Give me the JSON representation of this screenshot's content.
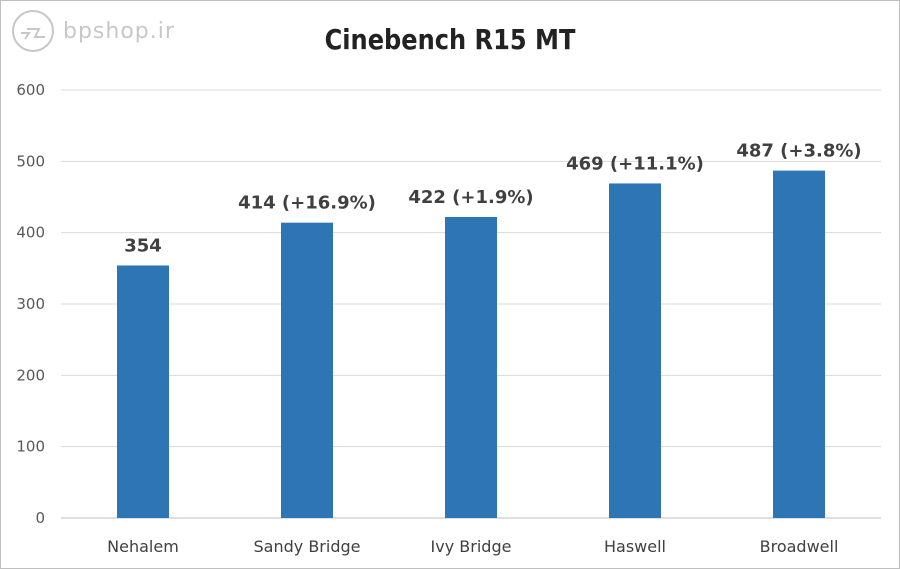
{
  "watermark": {
    "text": "bpshop.ir"
  },
  "chart_data": {
    "type": "bar",
    "title": "Cinebench R15 MT",
    "categories": [
      "Nehalem",
      "Sandy Bridge",
      "Ivy Bridge",
      "Haswell",
      "Broadwell"
    ],
    "values": [
      354,
      414,
      422,
      469,
      487
    ],
    "data_labels": [
      "354",
      "414 (+16.9%)",
      "422 (+1.9%)",
      "469 (+11.1%)",
      "487 (+3.8%)"
    ],
    "ylim": [
      0,
      600
    ],
    "yticks": [
      0,
      100,
      200,
      300,
      400,
      500,
      600
    ],
    "grid": true,
    "bar_color": "#2e75b6",
    "grid_color": "#d9d9d9"
  }
}
